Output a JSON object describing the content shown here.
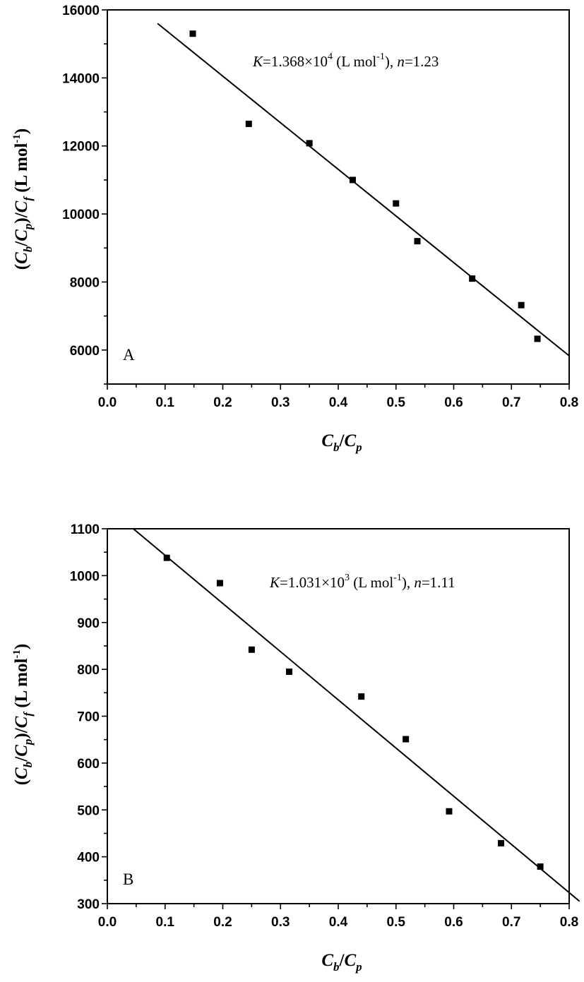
{
  "chart_data": [
    {
      "type": "scatter",
      "panel_label": "A",
      "xlabel": {
        "c1": "C",
        "s1": "b",
        "sep": "/",
        "c2": "C",
        "s2": "p"
      },
      "ylabel": {
        "open": "(",
        "c1": "C",
        "s1": "b",
        "sep1": "/",
        "c2": "C",
        "s2": "p",
        "close": ")/",
        "c3": "C",
        "s3": "f",
        "unit_pre": " (L mol",
        "unit_exp": "-1",
        "unit_post": ")"
      },
      "annotation": {
        "k_sym": "K",
        "k_val": "=1.368×10",
        "k_exp": "4",
        "unit_pre": " (L mol",
        "unit_exp": "-1",
        "unit_post": "), ",
        "n_sym": "n",
        "n_val": "=1.23"
      },
      "xlim": [
        0.0,
        0.8
      ],
      "ylim": [
        5000,
        16000
      ],
      "xticks": [
        0.0,
        0.1,
        0.2,
        0.3,
        0.4,
        0.5,
        0.6,
        0.7,
        0.8
      ],
      "xtick_labels": [
        "0.0",
        "0.1",
        "0.2",
        "0.3",
        "0.4",
        "0.5",
        "0.6",
        "0.7",
        "0.8"
      ],
      "yticks": [
        6000,
        8000,
        10000,
        12000,
        14000,
        16000
      ],
      "ytick_labels": [
        "6000",
        "8000",
        "10000",
        "12000",
        "14000",
        "16000"
      ],
      "ytick_minor": [
        5000,
        7000,
        9000,
        11000,
        13000,
        15000
      ],
      "points": {
        "x": [
          0.148,
          0.245,
          0.35,
          0.425,
          0.5,
          0.537,
          0.632,
          0.717,
          0.745
        ],
        "y": [
          15300,
          12650,
          12080,
          11000,
          10310,
          9200,
          8100,
          7320,
          6330
        ]
      },
      "fit_line": {
        "x": [
          0.087,
          0.8
        ],
        "y": [
          15600,
          5830
        ]
      },
      "grid": false,
      "legend": "none"
    },
    {
      "type": "scatter",
      "panel_label": "B",
      "xlabel": {
        "c1": "C",
        "s1": "b",
        "sep": "/",
        "c2": "C",
        "s2": "p"
      },
      "ylabel": {
        "open": "(",
        "c1": "C",
        "s1": "b",
        "sep1": "/",
        "c2": "C",
        "s2": "p",
        "close": ")/",
        "c3": "C",
        "s3": "f",
        "unit_pre": " (L mol",
        "unit_exp": "-1",
        "unit_post": ")"
      },
      "annotation": {
        "k_sym": "K",
        "k_val": "=1.031×10",
        "k_exp": "3",
        "unit_pre": " (L mol",
        "unit_exp": "-1",
        "unit_post": "), ",
        "n_sym": "n",
        "n_val": "=1.11"
      },
      "xlim": [
        0.0,
        0.8
      ],
      "ylim": [
        300,
        1100
      ],
      "xticks": [
        0.0,
        0.1,
        0.2,
        0.3,
        0.4,
        0.5,
        0.6,
        0.7,
        0.8
      ],
      "xtick_labels": [
        "0.0",
        "0.1",
        "0.2",
        "0.3",
        "0.4",
        "0.5",
        "0.6",
        "0.7",
        "0.8"
      ],
      "yticks": [
        300,
        400,
        500,
        600,
        700,
        800,
        900,
        1000,
        1100
      ],
      "ytick_labels": [
        "300",
        "400",
        "500",
        "600",
        "700",
        "800",
        "900",
        "1000",
        "1100"
      ],
      "ytick_minor": [
        350,
        450,
        550,
        650,
        750,
        850,
        950,
        1050
      ],
      "points": {
        "x": [
          0.103,
          0.195,
          0.25,
          0.315,
          0.44,
          0.517,
          0.592,
          0.682,
          0.75
        ],
        "y": [
          1038,
          984,
          842,
          795,
          742,
          651,
          497,
          429,
          379
        ]
      },
      "fit_line": {
        "x": [
          0.045,
          0.818
        ],
        "y": [
          1100,
          305
        ]
      },
      "grid": false,
      "legend": "none"
    }
  ]
}
